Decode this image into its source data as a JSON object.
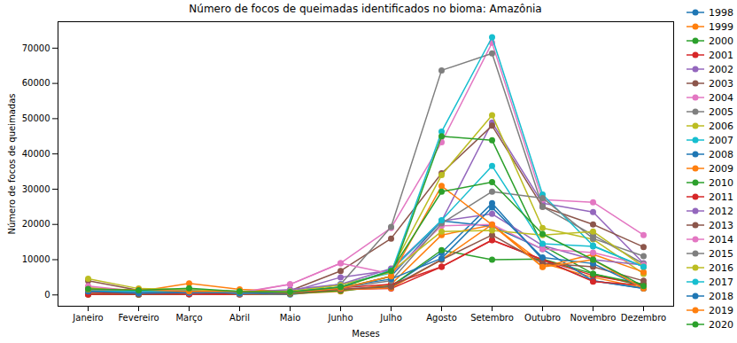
{
  "chart_data": {
    "type": "line",
    "title": "Número de focos de queimadas identificados no bioma: Amazônia",
    "x_label": "Meses",
    "y_label": "Número de focos de queimadas",
    "categories": [
      "Janeiro",
      "Fevereiro",
      "Março",
      "Abril",
      "Maio",
      "Junho",
      "Julho",
      "Agosto",
      "Setembro",
      "Outubro",
      "Novembro",
      "Dezembro"
    ],
    "ylim": [
      -3200,
      77500
    ],
    "yticks": [
      0,
      10000,
      20000,
      30000,
      40000,
      50000,
      60000,
      70000
    ],
    "grid": false,
    "legend": "outside right",
    "marker": "o",
    "line_style": "solid",
    "series": [
      {
        "name": "1998",
        "color": "#1f77b4",
        "values": [
          200,
          150,
          200,
          100,
          150,
          1500,
          2500,
          12000,
          26000,
          10000,
          4000,
          1800
        ]
      },
      {
        "name": "1999",
        "color": "#ff7f0e",
        "values": [
          100,
          150,
          250,
          200,
          300,
          1000,
          3000,
          17000,
          19800,
          9000,
          5000,
          2000
        ]
      },
      {
        "name": "2000",
        "color": "#2ca02c",
        "values": [
          200,
          100,
          300,
          300,
          400,
          1200,
          2500,
          12700,
          10000,
          10200,
          6000,
          2500
        ]
      },
      {
        "name": "2001",
        "color": "#d62728",
        "values": [
          100,
          200,
          200,
          200,
          500,
          1600,
          1800,
          8000,
          15600,
          10000,
          5500,
          3000
        ]
      },
      {
        "name": "2002",
        "color": "#9467bd",
        "values": [
          1000,
          700,
          800,
          300,
          900,
          5000,
          7000,
          21000,
          48900,
          26000,
          23500,
          9000
        ]
      },
      {
        "name": "2003",
        "color": "#8c564b",
        "values": [
          4000,
          1300,
          1600,
          700,
          1200,
          6800,
          16000,
          34500,
          48000,
          25000,
          20000,
          13600
        ]
      },
      {
        "name": "2004",
        "color": "#e377c2",
        "values": [
          2000,
          1000,
          800,
          500,
          3000,
          9000,
          19000,
          43300,
          71500,
          27000,
          26300,
          17000
        ]
      },
      {
        "name": "2005",
        "color": "#7f7f7f",
        "values": [
          1600,
          600,
          1400,
          900,
          1000,
          3000,
          19300,
          63700,
          68500,
          25000,
          17000,
          8800
        ]
      },
      {
        "name": "2006",
        "color": "#bcbd22",
        "values": [
          2000,
          1200,
          800,
          500,
          800,
          2000,
          7000,
          34000,
          51000,
          19000,
          15800,
          6000
        ]
      },
      {
        "name": "2007",
        "color": "#17becf",
        "values": [
          1500,
          1000,
          1500,
          400,
          900,
          3000,
          6200,
          46300,
          73100,
          28500,
          14000,
          8000
        ]
      },
      {
        "name": "2008",
        "color": "#1f77b4",
        "values": [
          1000,
          400,
          700,
          300,
          600,
          1800,
          5300,
          21000,
          19500,
          13000,
          4000,
          1900
        ]
      },
      {
        "name": "2009",
        "color": "#ff7f0e",
        "values": [
          1500,
          1000,
          3300,
          1600,
          1000,
          1500,
          2000,
          10000,
          20000,
          8000,
          11500,
          6500
        ]
      },
      {
        "name": "2010",
        "color": "#2ca02c",
        "values": [
          1500,
          1400,
          1300,
          500,
          1000,
          1800,
          5300,
          45000,
          43900,
          14000,
          6000,
          3000
        ]
      },
      {
        "name": "2011",
        "color": "#d62728",
        "values": [
          700,
          500,
          500,
          300,
          1000,
          2000,
          3000,
          8000,
          15500,
          10000,
          3800,
          2800
        ]
      },
      {
        "name": "2012",
        "color": "#9467bd",
        "values": [
          1500,
          800,
          600,
          700,
          1500,
          3000,
          7500,
          21000,
          23000,
          14000,
          10000,
          8500
        ]
      },
      {
        "name": "2013",
        "color": "#8c564b",
        "values": [
          1000,
          500,
          1000,
          400,
          900,
          1600,
          2300,
          10000,
          17000,
          9000,
          8000,
          4000
        ]
      },
      {
        "name": "2014",
        "color": "#e377c2",
        "values": [
          2500,
          1000,
          1500,
          700,
          3000,
          9000,
          6000,
          19600,
          20000,
          13000,
          12000,
          8500
        ]
      },
      {
        "name": "2015",
        "color": "#7f7f7f",
        "values": [
          1500,
          500,
          1300,
          400,
          900,
          2000,
          4000,
          20300,
          29300,
          27500,
          16000,
          11000
        ]
      },
      {
        "name": "2016",
        "color": "#bcbd22",
        "values": [
          4600,
          1800,
          1500,
          1000,
          1000,
          2800,
          6500,
          18000,
          18300,
          17000,
          18000,
          8000
        ]
      },
      {
        "name": "2017",
        "color": "#17becf",
        "values": [
          1200,
          1000,
          1200,
          500,
          800,
          2200,
          7000,
          21200,
          36600,
          14500,
          13800,
          8000
        ]
      },
      {
        "name": "2018",
        "color": "#1f77b4",
        "values": [
          1000,
          600,
          700,
          600,
          700,
          2300,
          4500,
          10400,
          24800,
          10600,
          8900,
          2000
        ]
      },
      {
        "name": "2019",
        "color": "#ff7f0e",
        "values": [
          1600,
          1500,
          1000,
          1000,
          700,
          1900,
          5300,
          30900,
          19900,
          7900,
          10000,
          1800
        ]
      },
      {
        "name": "2020",
        "color": "#2ca02c",
        "values": [
          1700,
          1300,
          1900,
          1000,
          800,
          2200,
          6800,
          29300,
          32000,
          17300,
          10000,
          2500
        ]
      }
    ]
  }
}
